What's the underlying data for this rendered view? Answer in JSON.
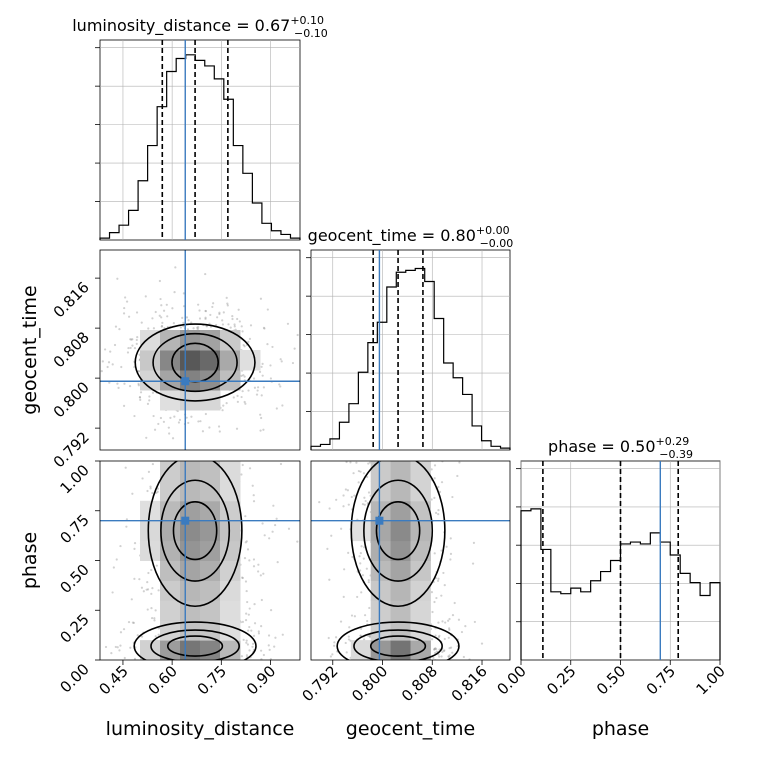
{
  "chart_data": {
    "type": "corner",
    "parameters": [
      "luminosity_distance",
      "geocent_time",
      "phase"
    ],
    "truths": {
      "luminosity_distance": 0.64,
      "geocent_time": 0.7995,
      "phase": 0.7
    },
    "colors": {
      "truth": "#3b7bbf",
      "hist": "#000000",
      "grid": "#b0b0b0",
      "contour": "#000000"
    },
    "titles": [
      {
        "param": "luminosity_distance",
        "prefix": "luminosity_distance = 0.67",
        "sup": "+0.10",
        "sub": "−0.10"
      },
      {
        "param": "geocent_time",
        "prefix": "geocent_time = 0.80",
        "sup": "+0.00",
        "sub": "−0.00"
      },
      {
        "param": "phase",
        "prefix": "phase = 0.50",
        "sup": "+0.29",
        "sub": "−0.39"
      }
    ],
    "axes": {
      "luminosity_distance": {
        "range": [
          0.38,
          0.99
        ],
        "ticks": [
          "0.45",
          "0.60",
          "0.75",
          "0.90"
        ],
        "tick_values": [
          0.45,
          0.6,
          0.75,
          0.9
        ],
        "quantiles": [
          0.57,
          0.67,
          0.77
        ]
      },
      "geocent_time": {
        "range": [
          0.7885,
          0.8205
        ],
        "ticks": [
          "0.792",
          "0.800",
          "0.808",
          "0.816"
        ],
        "tick_values": [
          0.792,
          0.8,
          0.808,
          0.816
        ],
        "quantiles": [
          0.7985,
          0.8025,
          0.8065
        ]
      },
      "phase": {
        "range": [
          0.0,
          1.0
        ],
        "ticks": [
          "0.00",
          "0.25",
          "0.50",
          "0.75",
          "1.00"
        ],
        "tick_values": [
          0.0,
          0.25,
          0.5,
          0.75,
          1.0
        ],
        "quantiles": [
          0.11,
          0.5,
          0.79
        ]
      }
    },
    "hist_1d": {
      "luminosity_distance": [
        0.01,
        0.04,
        0.08,
        0.16,
        0.32,
        0.51,
        0.72,
        0.91,
        0.98,
        1.0,
        0.97,
        0.94,
        0.87,
        0.76,
        0.51,
        0.36,
        0.2,
        0.09,
        0.05,
        0.03,
        0.01
      ],
      "geocent_time": [
        0.02,
        0.03,
        0.06,
        0.15,
        0.25,
        0.42,
        0.58,
        0.69,
        0.88,
        0.96,
        0.97,
        0.98,
        0.91,
        0.71,
        0.47,
        0.39,
        0.3,
        0.13,
        0.05,
        0.02,
        0.01
      ],
      "phase": [
        0.81,
        0.82,
        0.6,
        0.37,
        0.36,
        0.39,
        0.37,
        0.43,
        0.48,
        0.54,
        0.63,
        0.64,
        0.63,
        0.69,
        0.64,
        0.57,
        0.47,
        0.42,
        0.35,
        0.42
      ]
    },
    "hist_ylim": [
      0,
      1.08
    ],
    "xlabel_ticks_rotated": 45
  }
}
